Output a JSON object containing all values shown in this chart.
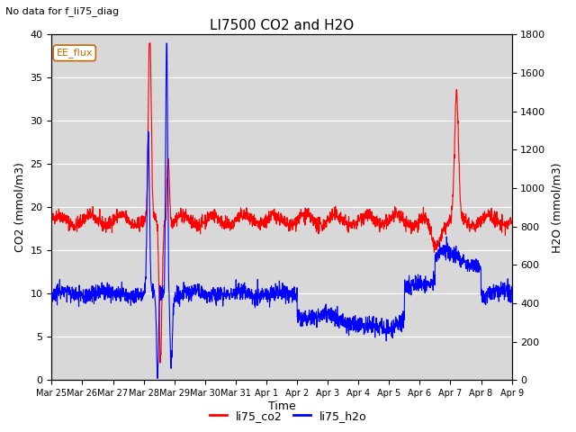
{
  "title": "LI7500 CO2 and H2O",
  "suptitle": "No data for f_li75_diag",
  "xlabel": "Time",
  "ylabel_left": "CO2 (mmol/m3)",
  "ylabel_right": "H2O (mmol/m3)",
  "ylim_left": [
    0,
    40
  ],
  "ylim_right": [
    0,
    1800
  ],
  "legend_labels": [
    "li75_co2",
    "li75_h2o"
  ],
  "legend_colors": [
    "red",
    "blue"
  ],
  "box_label": "EE_flux",
  "color_co2": "#ff0000",
  "color_h2o": "#0000ff",
  "bg_color": "#d8d8d8",
  "xtick_labels": [
    "Mar 25",
    "Mar 26",
    "Mar 27",
    "Mar 28",
    "Mar 29",
    "Mar 30",
    "Mar 31",
    "Apr 1",
    "Apr 2",
    "Apr 3",
    "Apr 4",
    "Apr 5",
    "Apr 6",
    "Apr 7",
    "Apr 8",
    "Apr 9"
  ],
  "yticks_left": [
    0,
    5,
    10,
    15,
    20,
    25,
    30,
    35,
    40
  ],
  "yticks_right": [
    0,
    200,
    400,
    600,
    800,
    1000,
    1200,
    1400,
    1600,
    1800
  ]
}
